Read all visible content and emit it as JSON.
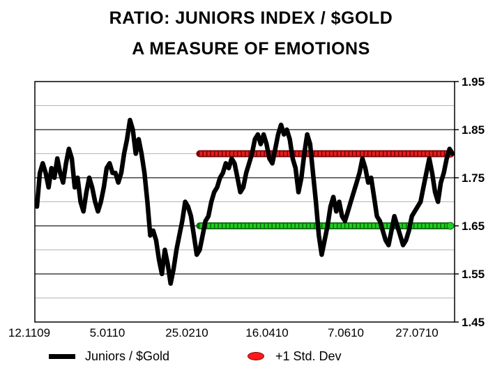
{
  "chart_data": {
    "type": "line",
    "title": "RATIO: JUNIORS INDEX / $GOLD",
    "subtitle": "A MEASURE OF EMOTIONS",
    "xlabel": "",
    "ylabel": "",
    "ylim": [
      1.45,
      1.95
    ],
    "yticks": [
      "1.95",
      "1.85",
      "1.75",
      "1.65",
      "1.55",
      "1.45"
    ],
    "xticks": [
      "12.1109",
      "5.0110",
      "25.0210",
      "16.0410",
      "7.0610",
      "27.0710"
    ],
    "grid": true,
    "legend_position": "bottom",
    "series": [
      {
        "name": "Juniors / $Gold",
        "color": "#000000",
        "values": [
          1.69,
          1.76,
          1.78,
          1.76,
          1.73,
          1.77,
          1.75,
          1.79,
          1.76,
          1.74,
          1.78,
          1.81,
          1.79,
          1.73,
          1.75,
          1.7,
          1.68,
          1.72,
          1.75,
          1.73,
          1.7,
          1.68,
          1.7,
          1.73,
          1.77,
          1.78,
          1.76,
          1.76,
          1.74,
          1.76,
          1.8,
          1.83,
          1.87,
          1.85,
          1.8,
          1.83,
          1.8,
          1.76,
          1.7,
          1.63,
          1.64,
          1.62,
          1.58,
          1.55,
          1.6,
          1.57,
          1.53,
          1.56,
          1.6,
          1.63,
          1.66,
          1.7,
          1.69,
          1.67,
          1.63,
          1.59,
          1.6,
          1.63,
          1.66,
          1.67,
          1.7,
          1.72,
          1.73,
          1.75,
          1.76,
          1.78,
          1.77,
          1.79,
          1.78,
          1.75,
          1.72,
          1.73,
          1.76,
          1.78,
          1.8,
          1.83,
          1.84,
          1.82,
          1.84,
          1.82,
          1.79,
          1.78,
          1.81,
          1.84,
          1.86,
          1.84,
          1.85,
          1.83,
          1.79,
          1.77,
          1.72,
          1.75,
          1.8,
          1.84,
          1.82,
          1.76,
          1.7,
          1.63,
          1.59,
          1.62,
          1.65,
          1.69,
          1.71,
          1.68,
          1.7,
          1.67,
          1.66,
          1.68,
          1.7,
          1.72,
          1.74,
          1.76,
          1.79,
          1.77,
          1.74,
          1.75,
          1.71,
          1.67,
          1.66,
          1.64,
          1.62,
          1.61,
          1.64,
          1.67,
          1.65,
          1.63,
          1.61,
          1.62,
          1.64,
          1.67,
          1.68,
          1.69,
          1.7,
          1.73,
          1.76,
          1.79,
          1.76,
          1.72,
          1.7,
          1.74,
          1.76,
          1.79,
          1.81,
          1.8
        ]
      }
    ],
    "reference_lines": [
      {
        "name": "+1 Std. Dev",
        "value": 1.8,
        "color": "#e51e1e"
      },
      {
        "value": 1.65,
        "color": "#22cc22"
      }
    ]
  }
}
